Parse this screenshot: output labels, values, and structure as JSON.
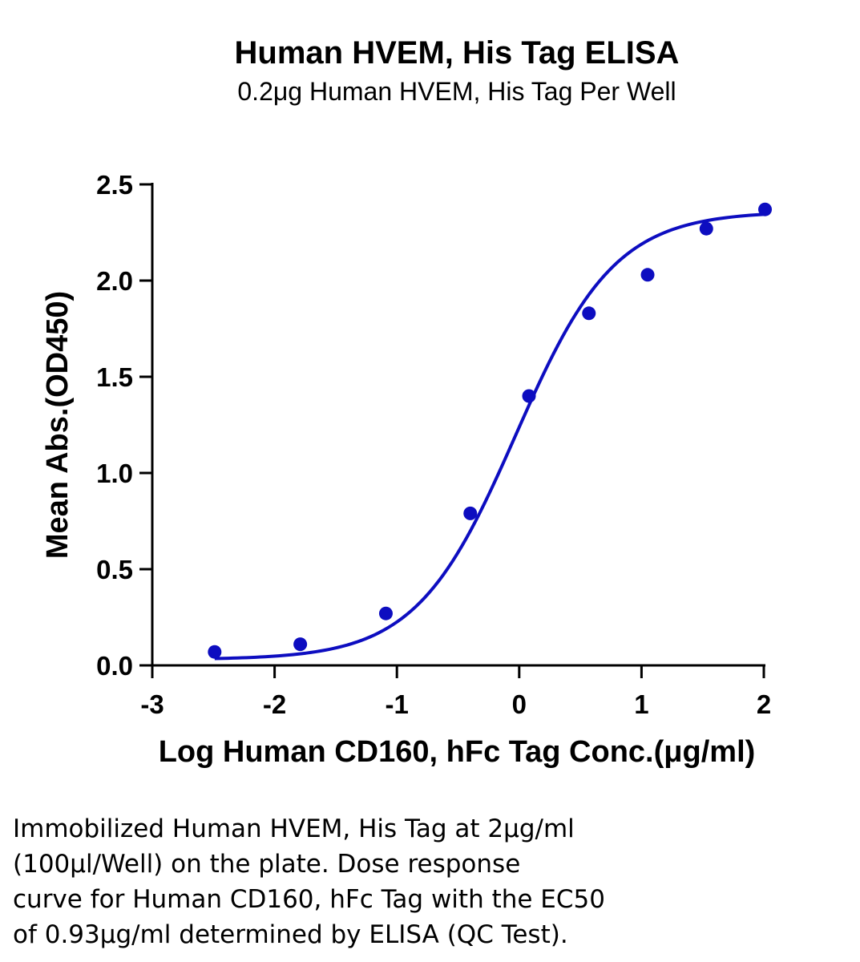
{
  "chart_data": {
    "type": "scatter",
    "title": "Human HVEM, His Tag ELISA",
    "subtitle": "0.2μg Human HVEM, His Tag Per Well",
    "xlabel": "Log Human CD160, hFc Tag Conc.(μg/ml)",
    "ylabel": "Mean Abs.(OD450)",
    "xlim": [
      -3,
      2
    ],
    "ylim": [
      0,
      2.5
    ],
    "xticks": [
      -3,
      -2,
      -1,
      0,
      1,
      2
    ],
    "yticks": [
      0.0,
      0.5,
      1.0,
      1.5,
      2.0,
      2.5
    ],
    "xtick_labels": [
      "-3",
      "-2",
      "-1",
      "0",
      "1",
      "2"
    ],
    "ytick_labels": [
      "0.0",
      "0.5",
      "1.0",
      "1.5",
      "2.0",
      "2.5"
    ],
    "grid": false,
    "color": "#0d0dc0",
    "points": [
      {
        "x": -2.49,
        "y": 0.07
      },
      {
        "x": -1.79,
        "y": 0.11
      },
      {
        "x": -1.09,
        "y": 0.27
      },
      {
        "x": -0.4,
        "y": 0.79
      },
      {
        "x": 0.08,
        "y": 1.4
      },
      {
        "x": 0.57,
        "y": 1.83
      },
      {
        "x": 1.05,
        "y": 2.03
      },
      {
        "x": 1.53,
        "y": 2.27
      },
      {
        "x": 2.01,
        "y": 2.37
      }
    ],
    "fit": {
      "bottom": 0.03,
      "top": 2.36,
      "logEC50": -0.03,
      "hill": 1.07,
      "xrange": [
        -2.49,
        2.0
      ]
    }
  },
  "caption_lines": [
    "Immobilized Human HVEM, His Tag at 2μg/ml",
    "(100μl/Well) on the plate. Dose response",
    "curve for Human CD160, hFc Tag with the EC50",
    "of 0.93μg/ml determined by ELISA (QC Test)."
  ]
}
